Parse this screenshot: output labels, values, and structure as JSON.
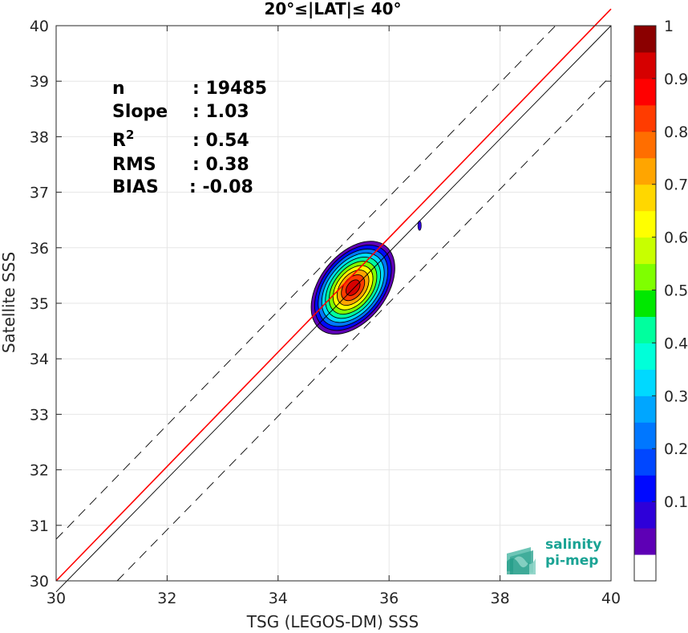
{
  "chart_data": {
    "type": "contour-density",
    "title": "20°≤|LAT|≤ 40°",
    "xlabel": "TSG (LEGOS-DM) SSS",
    "ylabel": "Satellite SSS",
    "xlim": [
      30,
      40
    ],
    "ylim": [
      30,
      40
    ],
    "x_ticks": [
      "30",
      "32",
      "34",
      "36",
      "38",
      "40"
    ],
    "y_ticks": [
      "30",
      "31",
      "32",
      "33",
      "34",
      "35",
      "36",
      "37",
      "38",
      "39",
      "40"
    ],
    "grid": true,
    "stats": [
      {
        "label": "n",
        "value": ": 19485"
      },
      {
        "label": "Slope",
        "value": ": 1.03"
      },
      {
        "label": "R",
        "sup": "2",
        "value": ": 0.54"
      },
      {
        "label": "RMS",
        "value": ": 0.38"
      },
      {
        "label": "BIAS",
        "value": ": -0.08"
      }
    ],
    "lines": {
      "identity": {
        "color": "#000000",
        "points": [
          [
            30,
            29.8
          ],
          [
            40,
            40
          ]
        ]
      },
      "regression": {
        "color": "#ff0000",
        "points": [
          [
            30,
            30
          ],
          [
            40,
            40.3
          ]
        ]
      },
      "upper_bound": {
        "style": "dashed",
        "points": [
          [
            30,
            30.75
          ],
          [
            39,
            40
          ]
        ]
      },
      "lower_bound": {
        "style": "dashed",
        "points": [
          [
            31.1,
            30
          ],
          [
            40,
            39.1
          ]
        ]
      }
    },
    "density": {
      "center": [
        35.35,
        35.28
      ],
      "levels": [
        0.05,
        0.15,
        0.25,
        0.35,
        0.45,
        0.55,
        0.65,
        0.75,
        0.85,
        0.95
      ],
      "outer_extent": {
        "xmin": 34.6,
        "xmax": 35.95,
        "ymin": 34.6,
        "ymax": 36.05
      },
      "secondary_blob": [
        36.55,
        36.4
      ]
    },
    "colorbar": {
      "ticks": [
        "0.1",
        "0.2",
        "0.3",
        "0.4",
        "0.5",
        "0.6",
        "0.7",
        "0.8",
        "0.9",
        "1"
      ],
      "colors": [
        "#ffffff",
        "#5e00b5",
        "#2e00d9",
        "#0009ff",
        "#0047ff",
        "#0077ff",
        "#00a6ff",
        "#00d9ff",
        "#00ffd9",
        "#00ff9e",
        "#00e800",
        "#7fff00",
        "#c8ff00",
        "#ffff00",
        "#ffd700",
        "#ffa500",
        "#ff6e00",
        "#ff3c00",
        "#ff0000",
        "#d60000",
        "#8b0000"
      ]
    }
  },
  "logo": {
    "line1": "salinity",
    "line2": "pi-mep"
  }
}
